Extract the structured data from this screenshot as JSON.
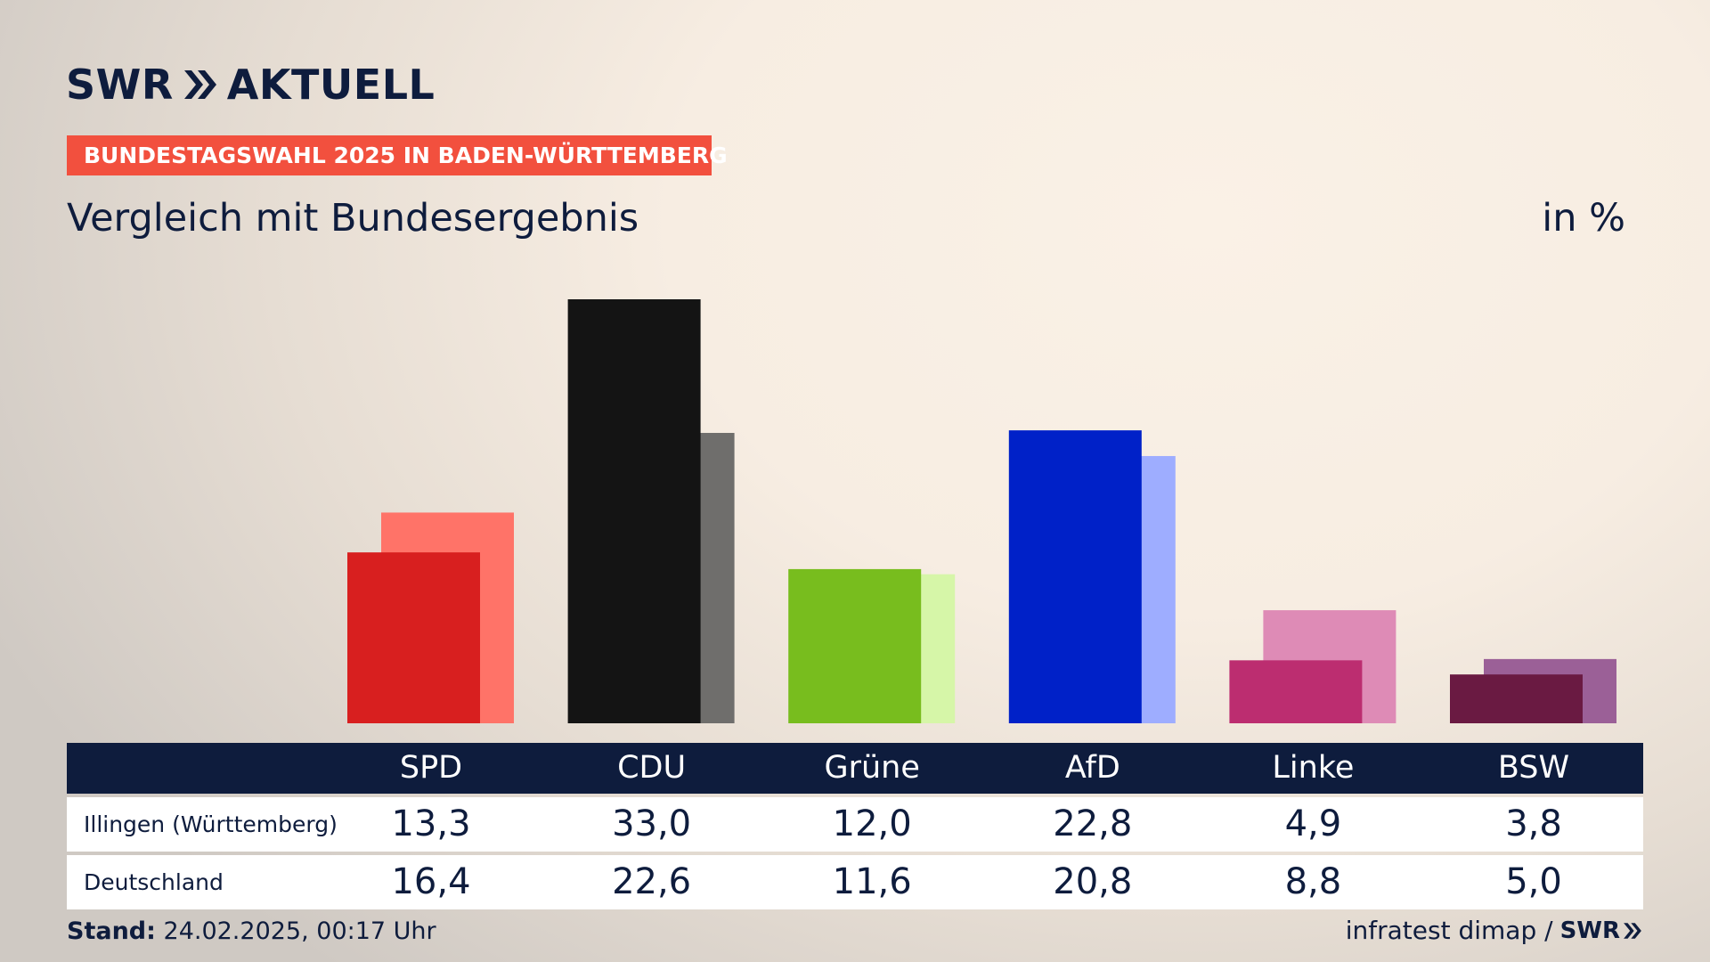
{
  "brand": {
    "name": "SWR",
    "product": "AKTUELL"
  },
  "banner": "BUNDESTAGSWAHL 2025 IN BADEN-WÜRTTEMBERG",
  "subtitle": "Vergleich mit Bundesergebnis",
  "unit": "in %",
  "table": {
    "rows": [
      {
        "label": "Illingen (Württemberg)"
      },
      {
        "label": "Deutschland"
      }
    ]
  },
  "footer": {
    "stand_label": "Stand:",
    "stand_value": "24.02.2025, 00:17 Uhr",
    "source": "infratest dimap /",
    "source_brand": "SWR"
  },
  "chart_data": {
    "type": "bar",
    "categories": [
      "SPD",
      "CDU",
      "Grüne",
      "AfD",
      "Linke",
      "BSW"
    ],
    "series": [
      {
        "name": "Illingen (Württemberg)",
        "values": [
          13.3,
          33.0,
          12.0,
          22.8,
          4.9,
          3.8
        ],
        "labels": [
          "13,3",
          "33,0",
          "12,0",
          "22,8",
          "4,9",
          "3,8"
        ]
      },
      {
        "name": "Deutschland",
        "values": [
          16.4,
          22.6,
          11.6,
          20.8,
          8.8,
          5.0
        ],
        "labels": [
          "16,4",
          "22,6",
          "11,6",
          "20,8",
          "8,8",
          "5,0"
        ]
      }
    ],
    "colors_primary": [
      "#d81f1f",
      "#141414",
      "#78bd1e",
      "#0021c8",
      "#bc2d70",
      "#6a1a42"
    ],
    "colors_secondary": [
      "#ff7368",
      "#6f6e6c",
      "#d6f6a8",
      "#9eadff",
      "#de8bb6",
      "#9b6097"
    ],
    "ylim": [
      0,
      33.0
    ],
    "title": "Vergleich mit Bundesergebnis",
    "ylabel": "in %",
    "legend": "table below chart"
  }
}
